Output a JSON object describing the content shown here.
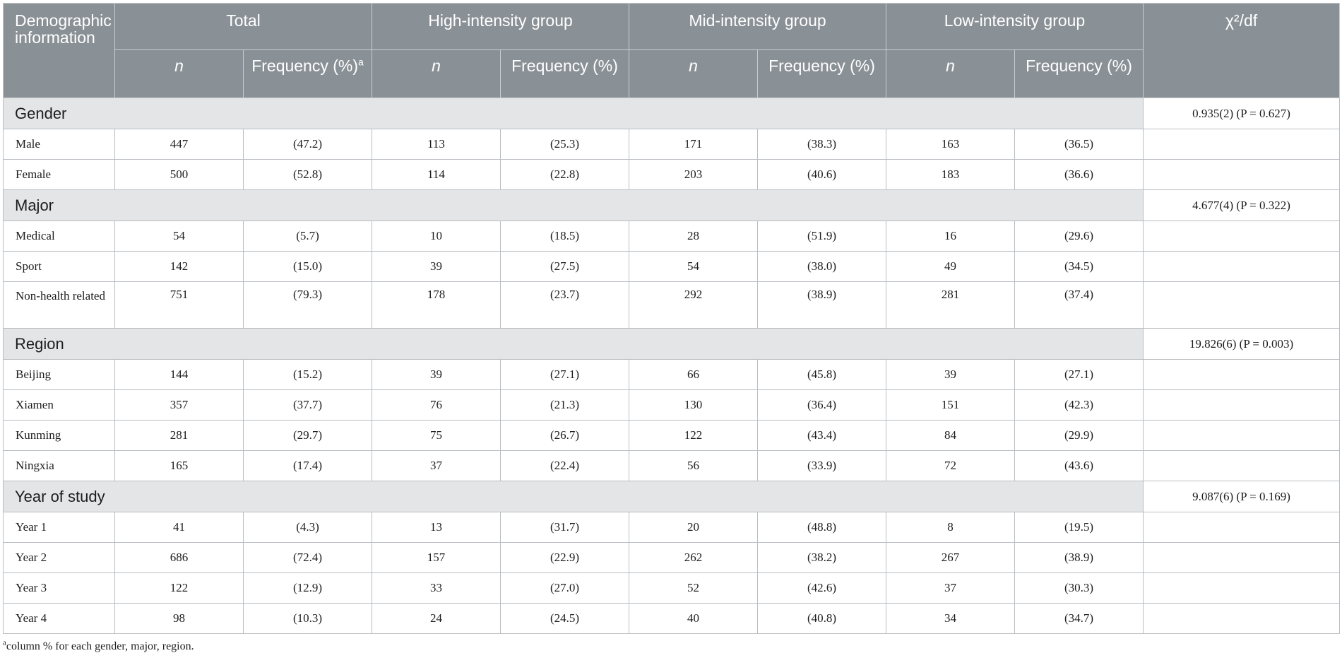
{
  "table": {
    "header": {
      "demographic": "Demographic information",
      "total": "Total",
      "high": "High-intensity group",
      "mid": "Mid-intensity group",
      "low": "Low-intensity group",
      "chi": "χ²/df",
      "n": "n",
      "frequency_total": "Frequency (%)",
      "frequency_total_mark": "a",
      "frequency": "Frequency (%)"
    },
    "sections": [
      {
        "category": "Gender",
        "chi": "0.935(2) (P = 0.627)",
        "rows": [
          {
            "label": "Male",
            "cells": [
              "447",
              "(47.2)",
              "113",
              "(25.3)",
              "171",
              "(38.3)",
              "163",
              "(36.5)"
            ]
          },
          {
            "label": "Female",
            "cells": [
              "500",
              "(52.8)",
              "114",
              "(22.8)",
              "203",
              "(40.6)",
              "183",
              "(36.6)"
            ]
          }
        ]
      },
      {
        "category": "Major",
        "chi": "4.677(4) (P = 0.322)",
        "rows": [
          {
            "label": "Medical",
            "cells": [
              "54",
              "(5.7)",
              "10",
              "(18.5)",
              "28",
              "(51.9)",
              "16",
              "(29.6)"
            ]
          },
          {
            "label": "Sport",
            "cells": [
              "142",
              "(15.0)",
              "39",
              "(27.5)",
              "54",
              "(38.0)",
              "49",
              "(34.5)"
            ]
          },
          {
            "label": "Non-health related",
            "cells": [
              "751",
              "(79.3)",
              "178",
              "(23.7)",
              "292",
              "(38.9)",
              "281",
              "(37.4)"
            ]
          }
        ]
      },
      {
        "category": "Region",
        "chi": "19.826(6) (P = 0.003)",
        "rows": [
          {
            "label": "Beijing",
            "cells": [
              "144",
              "(15.2)",
              "39",
              "(27.1)",
              "66",
              "(45.8)",
              "39",
              "(27.1)"
            ]
          },
          {
            "label": "Xiamen",
            "cells": [
              "357",
              "(37.7)",
              "76",
              "(21.3)",
              "130",
              "(36.4)",
              "151",
              "(42.3)"
            ]
          },
          {
            "label": "Kunming",
            "cells": [
              "281",
              "(29.7)",
              "75",
              "(26.7)",
              "122",
              "(43.4)",
              "84",
              "(29.9)"
            ]
          },
          {
            "label": "Ningxia",
            "cells": [
              "165",
              "(17.4)",
              "37",
              "(22.4)",
              "56",
              "(33.9)",
              "72",
              "(43.6)"
            ]
          }
        ]
      },
      {
        "category": "Year of study",
        "chi": "9.087(6) (P = 0.169)",
        "rows": [
          {
            "label": "Year 1",
            "cells": [
              "41",
              "(4.3)",
              "13",
              "(31.7)",
              "20",
              "(48.8)",
              "8",
              "(19.5)"
            ]
          },
          {
            "label": "Year 2",
            "cells": [
              "686",
              "(72.4)",
              "157",
              "(22.9)",
              "262",
              "(38.2)",
              "267",
              "(38.9)"
            ]
          },
          {
            "label": "Year 3",
            "cells": [
              "122",
              "(12.9)",
              "33",
              "(27.0)",
              "52",
              "(42.6)",
              "37",
              "(30.3)"
            ]
          },
          {
            "label": "Year 4",
            "cells": [
              "98",
              "(10.3)",
              "24",
              "(24.5)",
              "40",
              "(40.8)",
              "34",
              "(34.7)"
            ]
          }
        ]
      }
    ]
  },
  "footnote": {
    "mark": "a",
    "text": "column % for each gender, major, region."
  }
}
